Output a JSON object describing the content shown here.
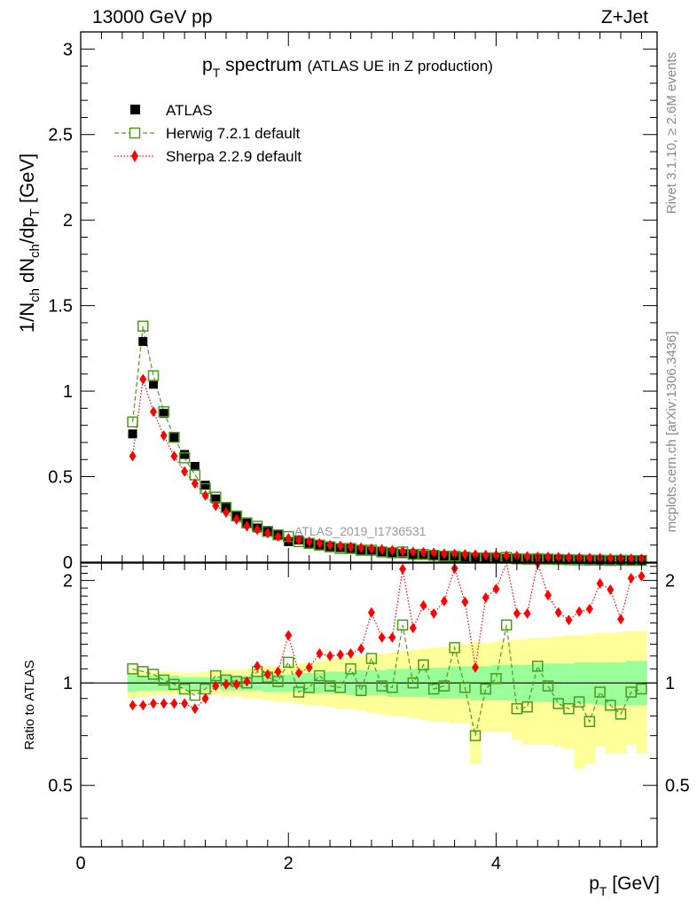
{
  "header": {
    "beam_label": "13000 GeV pp",
    "process_label": "Z+Jet"
  },
  "side_labels": {
    "rivet": "Rivet 3.1.10, ≥ 2.6M events",
    "mcplots": "mcplots.cern.ch [arXiv:1306.3436]"
  },
  "colors": {
    "atlas": "#000000",
    "herwig": "#4a9a1e",
    "sherpa": "#ff0000",
    "band_inner": "#99ff99",
    "band_outer": "#ffff99"
  },
  "chart_data": {
    "type": "scatter",
    "title_main": "p",
    "title_sub": "T",
    "title_word": " spectrum",
    "title_extra": "(ATLAS UE in Z production)",
    "watermark": "ATLAS_2019_I1736531",
    "xlabel_main": "p",
    "xlabel_sub": "T",
    "xlabel_unit": " [GeV]",
    "ylabel_top": "1/N_ch dN_ch/dp_T [GeV]",
    "ylabel_ratio": "Ratio to ATLAS",
    "xlim": [
      0,
      5.55
    ],
    "ylim_top": [
      0,
      3.1
    ],
    "ylim_ratio": [
      0.33,
      2.25
    ],
    "x_ticks": [
      0,
      2,
      4
    ],
    "x_tick_labels": [
      "0",
      "2",
      "4"
    ],
    "y_ticks_top": [
      0,
      0.5,
      1,
      1.5,
      2,
      2.5,
      3
    ],
    "y_tick_labels_top": [
      "0",
      "0.5",
      "1",
      "1.5",
      "2",
      "2.5",
      "3"
    ],
    "y_ticks_ratio": [
      0.5,
      1,
      2
    ],
    "y_tick_labels_ratio": [
      "0.5",
      "1",
      "2"
    ],
    "legend": [
      {
        "name": "ATLAS",
        "key": "atlas",
        "marker": "square-filled"
      },
      {
        "name": "Herwig 7.2.1 default",
        "key": "herwig",
        "marker": "square-open"
      },
      {
        "name": "Sherpa 2.2.9 default",
        "key": "sherpa",
        "marker": "diamond"
      }
    ],
    "x": [
      0.5,
      0.6,
      0.7,
      0.8,
      0.9,
      1.0,
      1.1,
      1.2,
      1.3,
      1.4,
      1.5,
      1.6,
      1.7,
      1.8,
      1.9,
      2.0,
      2.1,
      2.2,
      2.3,
      2.4,
      2.5,
      2.6,
      2.7,
      2.8,
      2.9,
      3.0,
      3.1,
      3.2,
      3.3,
      3.4,
      3.5,
      3.6,
      3.7,
      3.8,
      3.9,
      4.0,
      4.1,
      4.2,
      4.3,
      4.4,
      4.5,
      4.6,
      4.7,
      4.8,
      4.9,
      5.0,
      5.1,
      5.2,
      5.3,
      5.4
    ],
    "series": [
      {
        "name": "ATLAS",
        "values": [
          0.75,
          1.29,
          1.04,
          0.87,
          0.73,
          0.63,
          0.56,
          0.45,
          0.37,
          0.32,
          0.27,
          0.23,
          0.2,
          0.18,
          0.16,
          0.12,
          0.13,
          0.11,
          0.1,
          0.09,
          0.085,
          0.08,
          0.07,
          0.065,
          0.06,
          0.055,
          0.05,
          0.045,
          0.04,
          0.04,
          0.035,
          0.032,
          0.03,
          0.028,
          0.026,
          0.024,
          0.022,
          0.021,
          0.02,
          0.019,
          0.018,
          0.017,
          0.016,
          0.015,
          0.014,
          0.013,
          0.012,
          0.012,
          0.011,
          0.011
        ]
      },
      {
        "name": "Herwig 7.2.1 default",
        "values": [
          0.82,
          1.38,
          1.09,
          0.88,
          0.73,
          0.61,
          0.51,
          0.43,
          0.38,
          0.32,
          0.27,
          0.23,
          0.21,
          0.18,
          0.16,
          0.15,
          0.12,
          0.11,
          0.1,
          0.09,
          0.08,
          0.08,
          0.07,
          0.07,
          0.06,
          0.055,
          0.06,
          0.045,
          0.045,
          0.04,
          0.035,
          0.035,
          0.03,
          0.025,
          0.025,
          0.025,
          0.028,
          0.02,
          0.018,
          0.019,
          0.018,
          0.016,
          0.014,
          0.013,
          0.012,
          0.012,
          0.01,
          0.011,
          0.01,
          0.01
        ]
      },
      {
        "name": "Sherpa 2.2.9 default",
        "values": [
          0.62,
          1.07,
          0.88,
          0.74,
          0.62,
          0.53,
          0.46,
          0.39,
          0.33,
          0.29,
          0.25,
          0.21,
          0.19,
          0.17,
          0.15,
          0.14,
          0.13,
          0.12,
          0.11,
          0.1,
          0.095,
          0.09,
          0.085,
          0.08,
          0.075,
          0.07,
          0.065,
          0.06,
          0.058,
          0.055,
          0.05,
          0.048,
          0.046,
          0.044,
          0.042,
          0.04,
          0.038,
          0.036,
          0.034,
          0.032,
          0.031,
          0.029,
          0.027,
          0.026,
          0.025,
          0.024,
          0.023,
          0.022,
          0.021,
          0.02
        ]
      }
    ],
    "ratio_series": [
      {
        "name": "Herwig 7.2.1 default",
        "values": [
          1.1,
          1.08,
          1.06,
          1.02,
          0.99,
          0.96,
          0.92,
          0.96,
          1.05,
          1.02,
          1.01,
          1.0,
          1.08,
          1.04,
          1.01,
          1.15,
          0.94,
          0.97,
          1.05,
          0.98,
          0.97,
          1.1,
          0.95,
          1.18,
          0.98,
          0.97,
          1.48,
          1.0,
          1.13,
          0.96,
          0.98,
          1.27,
          0.97,
          0.7,
          0.96,
          1.03,
          1.48,
          0.84,
          0.85,
          1.12,
          0.98,
          0.87,
          0.84,
          0.88,
          0.77,
          0.94,
          0.86,
          0.81,
          0.94,
          0.96
        ]
      },
      {
        "name": "Sherpa 2.2.9 default",
        "values": [
          0.86,
          0.86,
          0.87,
          0.87,
          0.87,
          0.87,
          0.84,
          0.9,
          0.98,
          0.99,
          0.99,
          1.01,
          1.12,
          1.06,
          1.08,
          1.38,
          1.07,
          1.11,
          1.22,
          1.2,
          1.21,
          1.22,
          1.26,
          1.61,
          1.36,
          1.36,
          2.16,
          1.45,
          1.69,
          1.6,
          1.74,
          2.17,
          1.73,
          1.11,
          1.78,
          1.89,
          2.45,
          1.6,
          1.6,
          2.25,
          1.81,
          1.61,
          1.53,
          1.62,
          1.65,
          1.96,
          1.88,
          1.54,
          2.03,
          2.06
        ]
      }
    ],
    "band_inner": {
      "lo": [
        0.94,
        0.95,
        0.95,
        0.95,
        0.95,
        0.96,
        0.96,
        0.96,
        0.96,
        0.95,
        0.95,
        0.95,
        0.95,
        0.94,
        0.94,
        0.94,
        0.94,
        0.93,
        0.93,
        0.93,
        0.93,
        0.92,
        0.92,
        0.92,
        0.92,
        0.91,
        0.91,
        0.91,
        0.91,
        0.9,
        0.9,
        0.9,
        0.9,
        0.89,
        0.89,
        0.89,
        0.89,
        0.88,
        0.88,
        0.88,
        0.88,
        0.87,
        0.87,
        0.87,
        0.87,
        0.86,
        0.86,
        0.86,
        0.86,
        0.86
      ],
      "hi": [
        1.06,
        1.05,
        1.05,
        1.05,
        1.05,
        1.04,
        1.04,
        1.04,
        1.04,
        1.05,
        1.05,
        1.05,
        1.05,
        1.06,
        1.06,
        1.06,
        1.07,
        1.07,
        1.07,
        1.08,
        1.08,
        1.08,
        1.09,
        1.09,
        1.09,
        1.1,
        1.1,
        1.1,
        1.11,
        1.11,
        1.11,
        1.12,
        1.12,
        1.12,
        1.12,
        1.13,
        1.13,
        1.13,
        1.13,
        1.14,
        1.14,
        1.14,
        1.14,
        1.15,
        1.15,
        1.15,
        1.15,
        1.15,
        1.16,
        1.16
      ]
    },
    "band_outer": {
      "lo": [
        0.9,
        0.91,
        0.92,
        0.92,
        0.92,
        0.92,
        0.93,
        0.92,
        0.92,
        0.91,
        0.91,
        0.9,
        0.9,
        0.89,
        0.88,
        0.88,
        0.87,
        0.86,
        0.86,
        0.85,
        0.84,
        0.84,
        0.83,
        0.82,
        0.81,
        0.8,
        0.8,
        0.79,
        0.78,
        0.77,
        0.77,
        0.76,
        0.76,
        0.58,
        0.72,
        0.72,
        0.72,
        0.68,
        0.66,
        0.66,
        0.66,
        0.65,
        0.64,
        0.56,
        0.58,
        0.65,
        0.62,
        0.62,
        0.66,
        0.62
      ],
      "hi": [
        1.1,
        1.09,
        1.08,
        1.08,
        1.08,
        1.07,
        1.07,
        1.08,
        1.08,
        1.09,
        1.09,
        1.1,
        1.11,
        1.12,
        1.12,
        1.13,
        1.14,
        1.15,
        1.16,
        1.17,
        1.18,
        1.19,
        1.2,
        1.21,
        1.22,
        1.23,
        1.24,
        1.25,
        1.26,
        1.27,
        1.28,
        1.29,
        1.3,
        1.32,
        1.31,
        1.32,
        1.33,
        1.34,
        1.35,
        1.36,
        1.36,
        1.37,
        1.38,
        1.38,
        1.39,
        1.4,
        1.4,
        1.41,
        1.42,
        1.42
      ]
    }
  }
}
